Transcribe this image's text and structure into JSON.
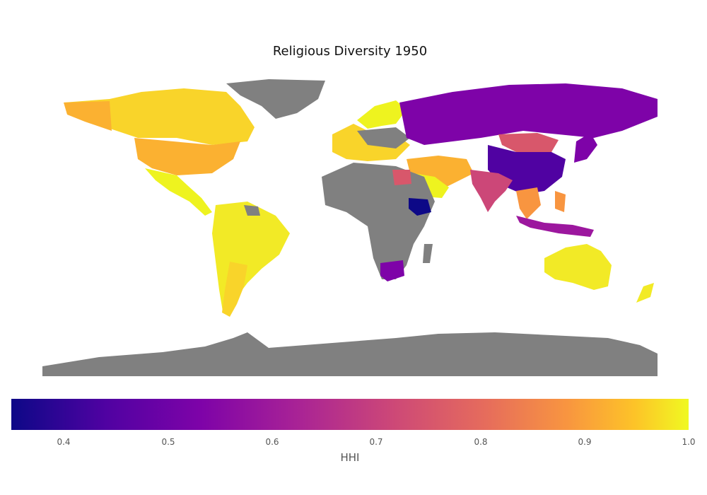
{
  "title": "Religious Diversity 1950",
  "colorbar": {
    "label": "HHI",
    "min": 0.35,
    "max": 1.0,
    "ticks": [
      "0.4",
      "0.5",
      "0.6",
      "0.7",
      "0.8",
      "0.9",
      "1.0"
    ],
    "colormap": "plasma"
  },
  "colors": {
    "no_data": "#808080",
    "ocean": "#ffffff"
  }
}
